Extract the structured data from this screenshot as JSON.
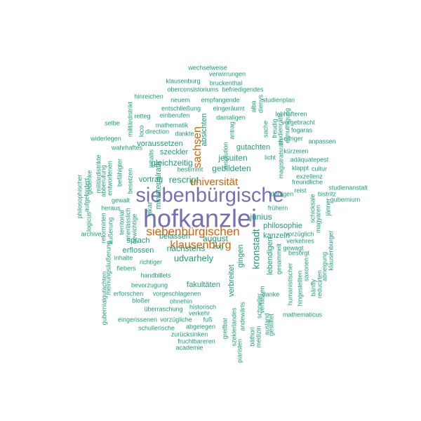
{
  "palette": {
    "teal": "#1b9e77",
    "orange": "#d95f02",
    "purple": "#7570b3"
  },
  "words": [
    {
      "text": "hofkanzlei",
      "color": "purple",
      "weight": 1.0
    },
    {
      "text": "siebenbürgische",
      "color": "purple",
      "weight": 0.86
    },
    {
      "text": "siebenbürgischen",
      "color": "orange",
      "weight": 0.55
    },
    {
      "text": "klausenburg",
      "color": "orange",
      "weight": 0.53
    },
    {
      "text": "universität",
      "color": "orange",
      "weight": 0.46
    },
    {
      "text": "sachsen",
      "color": "orange",
      "weight": 0.46
    },
    {
      "text": "kronstadt",
      "color": "teal",
      "weight": 0.36
    },
    {
      "text": "udvarhely",
      "color": "teal",
      "weight": 0.34
    },
    {
      "text": "rescript",
      "color": "teal",
      "weight": 0.33
    },
    {
      "text": "gebildeten",
      "color": "teal",
      "weight": 0.31
    },
    {
      "text": "gleichzeitig",
      "color": "teal",
      "weight": 0.31
    },
    {
      "text": "jesuiten",
      "color": "teal",
      "weight": 0.31
    },
    {
      "text": "nächstens",
      "color": "teal",
      "weight": 0.31
    },
    {
      "text": "junius",
      "color": "teal",
      "weight": 0.31
    },
    {
      "text": "belassen",
      "color": "teal",
      "weight": 0.29
    },
    {
      "text": "august",
      "color": "teal",
      "weight": 0.29
    },
    {
      "text": "gingen",
      "color": "teal",
      "weight": 0.29
    },
    {
      "text": "erflossen",
      "color": "teal",
      "weight": 0.27
    },
    {
      "text": "sprach",
      "color": "teal",
      "weight": 0.27
    },
    {
      "text": "vortrag",
      "color": "teal",
      "weight": 0.27
    },
    {
      "text": "lebendigen",
      "color": "teal",
      "weight": 0.27
    },
    {
      "text": "kanzeln",
      "color": "teal",
      "weight": 0.27
    },
    {
      "text": "philosophie",
      "color": "teal",
      "weight": 0.27
    },
    {
      "text": "fakultäten",
      "color": "teal",
      "weight": 0.27
    },
    {
      "text": "gutachten",
      "color": "teal",
      "weight": 0.27
    },
    {
      "text": "absichten",
      "color": "teal",
      "weight": 0.27
    },
    {
      "text": "ministerialrath",
      "color": "teal",
      "weight": 0.27
    },
    {
      "text": "voraussetzen",
      "color": "teal",
      "weight": 0.27
    },
    {
      "text": "szeckler",
      "color": "teal",
      "weight": 0.27
    },
    {
      "text": "vikar",
      "color": "teal",
      "weight": 0.27
    },
    {
      "text": "verbreitet",
      "color": "teal",
      "weight": 0.27
    },
    {
      "text": "wechselweise",
      "color": "teal",
      "weight": 0.2
    },
    {
      "text": "verwirrungen",
      "color": "teal",
      "weight": 0.2
    },
    {
      "text": "klausenburg",
      "color": "teal",
      "weight": 0.2
    },
    {
      "text": "bruckenthal",
      "color": "teal",
      "weight": 0.2
    },
    {
      "text": "oberconsistoriums",
      "color": "teal",
      "weight": 0.2
    },
    {
      "text": "befriedigendes",
      "color": "teal",
      "weight": 0.2
    },
    {
      "text": "hinreichen",
      "color": "teal",
      "weight": 0.2
    },
    {
      "text": "neuem",
      "color": "teal",
      "weight": 0.2
    },
    {
      "text": "empfangende",
      "color": "teal",
      "weight": 0.2
    },
    {
      "text": "studienplan",
      "color": "teal",
      "weight": 0.2
    },
    {
      "text": "entschließung",
      "color": "teal",
      "weight": 0.2
    },
    {
      "text": "eingeräumt",
      "color": "teal",
      "weight": 0.2
    },
    {
      "text": "retteg",
      "color": "teal",
      "weight": 0.2
    },
    {
      "text": "einberufen",
      "color": "teal",
      "weight": 0.2
    },
    {
      "text": "damaligen",
      "color": "teal",
      "weight": 0.2
    },
    {
      "text": "lebhafteren",
      "color": "teal",
      "weight": 0.2
    },
    {
      "text": "vorgebracht",
      "color": "teal",
      "weight": 0.2
    },
    {
      "text": "mathematik",
      "color": "teal",
      "weight": 0.2
    },
    {
      "text": "fogaras",
      "color": "teal",
      "weight": 0.2
    },
    {
      "text": "direction",
      "color": "teal",
      "weight": 0.2
    },
    {
      "text": "dankte",
      "color": "teal",
      "weight": 0.2
    },
    {
      "text": "eifriger",
      "color": "teal",
      "weight": 0.2
    },
    {
      "text": "anpassen",
      "color": "teal",
      "weight": 0.2
    },
    {
      "text": "widerlegen",
      "color": "teal",
      "weight": 0.2
    },
    {
      "text": "selbe",
      "color": "teal",
      "weight": 0.2
    },
    {
      "text": "wahrhaftes",
      "color": "teal",
      "weight": 0.2
    },
    {
      "text": "kürzeren",
      "color": "teal",
      "weight": 0.2
    },
    {
      "text": "adäquatepest",
      "color": "teal",
      "weight": 0.2
    },
    {
      "text": "bestimmt",
      "color": "teal",
      "weight": 0.2
    },
    {
      "text": "klappt",
      "color": "teal",
      "weight": 0.2
    },
    {
      "text": "cultur",
      "color": "teal",
      "weight": 0.2
    },
    {
      "text": "freundliche",
      "color": "teal",
      "weight": 0.2
    },
    {
      "text": "reist",
      "color": "teal",
      "weight": 0.2
    },
    {
      "text": "studienanstalt",
      "color": "teal",
      "weight": 0.2
    },
    {
      "text": "bistritz",
      "color": "teal",
      "weight": 0.2
    },
    {
      "text": "gubernium",
      "color": "teal",
      "weight": 0.2
    },
    {
      "text": "heraus",
      "color": "teal",
      "weight": 0.2
    },
    {
      "text": "gewalt",
      "color": "teal",
      "weight": 0.2
    },
    {
      "text": "frühern",
      "color": "teal",
      "weight": 0.2
    },
    {
      "text": "archive",
      "color": "teal",
      "weight": 0.2
    },
    {
      "text": "inhalte",
      "color": "teal",
      "weight": 0.2
    },
    {
      "text": "fiebers",
      "color": "teal",
      "weight": 0.2
    },
    {
      "text": "richtiger",
      "color": "teal",
      "weight": 0.2
    },
    {
      "text": "zog",
      "color": "teal",
      "weight": 0.2
    },
    {
      "text": "besorgt",
      "color": "teal",
      "weight": 0.2
    },
    {
      "text": "gewagt",
      "color": "teal",
      "weight": 0.2
    },
    {
      "text": "verkehres",
      "color": "teal",
      "weight": 0.2
    },
    {
      "text": "vorzüglich",
      "color": "teal",
      "weight": 0.2
    },
    {
      "text": "handbillets",
      "color": "teal",
      "weight": 0.2
    },
    {
      "text": "bevorzugung",
      "color": "teal",
      "weight": 0.2
    },
    {
      "text": "erforschen",
      "color": "teal",
      "weight": 0.2
    },
    {
      "text": "vorgeschlagenen",
      "color": "teal",
      "weight": 0.2
    },
    {
      "text": "bloßer",
      "color": "teal",
      "weight": 0.2
    },
    {
      "text": "ohnehin",
      "color": "teal",
      "weight": 0.2
    },
    {
      "text": "überraschung",
      "color": "teal",
      "weight": 0.2
    },
    {
      "text": "historisch",
      "color": "teal",
      "weight": 0.2
    },
    {
      "text": "verkehr",
      "color": "teal",
      "weight": 0.2
    },
    {
      "text": "danke",
      "color": "teal",
      "weight": 0.2
    },
    {
      "text": "mathematicus",
      "color": "teal",
      "weight": 0.2
    },
    {
      "text": "eingerissenen",
      "color": "teal",
      "weight": 0.2
    },
    {
      "text": "vorzügliche",
      "color": "teal",
      "weight": 0.2
    },
    {
      "text": "fuß",
      "color": "teal",
      "weight": 0.2
    },
    {
      "text": "schullerische",
      "color": "teal",
      "weight": 0.2
    },
    {
      "text": "abgelegen",
      "color": "teal",
      "weight": 0.2
    },
    {
      "text": "zurücksinken",
      "color": "teal",
      "weight": 0.2
    },
    {
      "text": "fruchtbareren",
      "color": "teal",
      "weight": 0.2
    },
    {
      "text": "academie",
      "color": "teal",
      "weight": 0.2
    },
    {
      "text": "militärdistrikt",
      "color": "teal",
      "weight": 0.2
    },
    {
      "text": "aufgefordert",
      "color": "teal",
      "weight": 0.2
    },
    {
      "text": "gedenke",
      "color": "teal",
      "weight": 0.2
    },
    {
      "text": "logicus",
      "color": "teal",
      "weight": 0.2
    },
    {
      "text": "philosophischer",
      "color": "teal",
      "weight": 0.2
    },
    {
      "text": "militärdistrikte",
      "color": "teal",
      "weight": 0.2
    },
    {
      "text": "abberufung",
      "color": "teal",
      "weight": 0.2
    },
    {
      "text": "entworfenen",
      "color": "teal",
      "weight": 0.2
    },
    {
      "text": "befähigter",
      "color": "teal",
      "weight": 0.2
    },
    {
      "text": "reformirten",
      "color": "teal",
      "weight": 0.2
    },
    {
      "text": "äußerung",
      "color": "teal",
      "weight": 0.2
    },
    {
      "text": "territorial",
      "color": "teal",
      "weight": 0.2
    },
    {
      "text": "unerlässlich",
      "color": "teal",
      "weight": 0.2
    },
    {
      "text": "gewichtige",
      "color": "teal",
      "weight": 0.2
    },
    {
      "text": "meinungsäußerung",
      "color": "teal",
      "weight": 0.2
    },
    {
      "text": "gubernialgutachten",
      "color": "teal",
      "weight": 0.2
    },
    {
      "text": "besetzen",
      "color": "teal",
      "weight": 0.2
    },
    {
      "text": "inhalts",
      "color": "teal",
      "weight": 0.2
    },
    {
      "text": "loco",
      "color": "teal",
      "weight": 0.2
    },
    {
      "text": "antrag",
      "color": "teal",
      "weight": 0.2
    },
    {
      "text": "resolution",
      "color": "teal",
      "weight": 0.2
    },
    {
      "text": "sache",
      "color": "teal",
      "weight": 0.2
    },
    {
      "text": "freudig",
      "color": "teal",
      "weight": 0.2
    },
    {
      "text": "alba",
      "color": "teal",
      "weight": 0.2
    },
    {
      "text": "dienys",
      "color": "teal",
      "weight": 0.2
    },
    {
      "text": "ermuthigung",
      "color": "teal",
      "weight": 0.2
    },
    {
      "text": "studienrath",
      "color": "teal",
      "weight": 0.2
    },
    {
      "text": "magistratsrath",
      "color": "teal",
      "weight": 0.2
    },
    {
      "text": "dortigen",
      "color": "teal",
      "weight": 0.2
    },
    {
      "text": "exzellenz",
      "color": "teal",
      "weight": 0.2
    },
    {
      "text": "licht",
      "color": "teal",
      "weight": 0.2
    },
    {
      "text": "schicksale",
      "color": "teal",
      "weight": 0.2
    },
    {
      "text": "magyaren",
      "color": "teal",
      "weight": 0.2
    },
    {
      "text": "jänner",
      "color": "teal",
      "weight": 0.2
    },
    {
      "text": "gesammelt",
      "color": "teal",
      "weight": 0.2
    },
    {
      "text": "humanistischer",
      "color": "teal",
      "weight": 0.2
    },
    {
      "text": "hingestellten",
      "color": "teal",
      "weight": 0.2
    },
    {
      "text": "saxonen",
      "color": "teal",
      "weight": 0.2
    },
    {
      "text": "bänffy",
      "color": "teal",
      "weight": 0.2
    },
    {
      "text": "reducirten",
      "color": "teal",
      "weight": 0.2
    },
    {
      "text": "abneigung",
      "color": "teal",
      "weight": 0.2
    },
    {
      "text": "klausenburger",
      "color": "teal",
      "weight": 0.2
    },
    {
      "text": "szeklerlandes",
      "color": "teal",
      "weight": 0.2
    },
    {
      "text": "piaristen",
      "color": "teal",
      "weight": 0.2
    },
    {
      "text": "andewärts",
      "color": "teal",
      "weight": 0.2
    },
    {
      "text": "bäthori",
      "color": "teal",
      "weight": 0.2
    },
    {
      "text": "medizin",
      "color": "teal",
      "weight": 0.2
    },
    {
      "text": "verfassen",
      "color": "teal",
      "weight": 0.2
    },
    {
      "text": "schneller",
      "color": "teal",
      "weight": 0.2
    },
    {
      "text": "ausland",
      "color": "teal",
      "weight": 0.2
    },
    {
      "text": "gestiftet",
      "color": "teal",
      "weight": 0.2
    },
    {
      "text": "greifbar",
      "color": "teal",
      "weight": 0.2
    }
  ]
}
